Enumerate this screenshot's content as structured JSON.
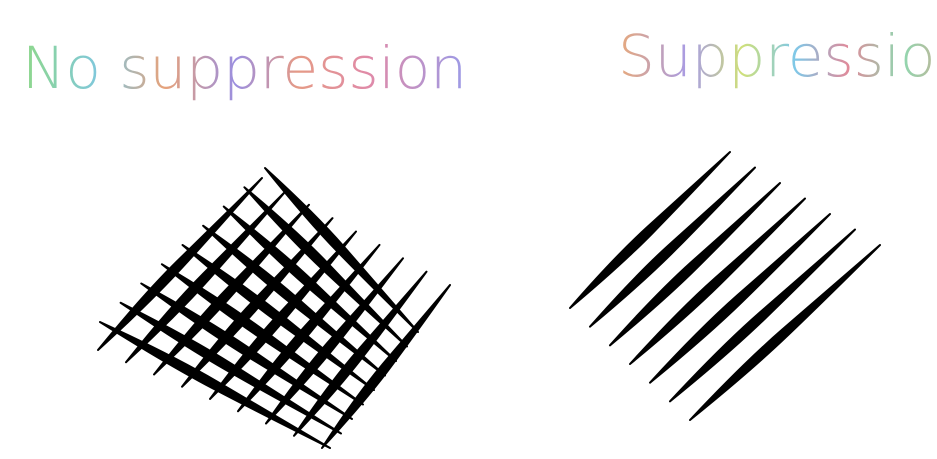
{
  "labels": {
    "left": "No suppression",
    "right": "Suppression"
  }
}
